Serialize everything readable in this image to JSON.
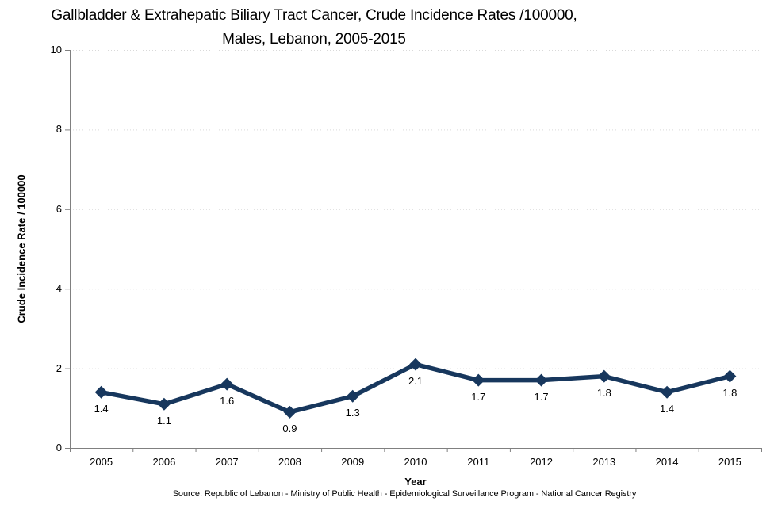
{
  "chart_data": {
    "type": "line",
    "title_lines": [
      "Gallbladder & Extrahepatic Biliary Tract Cancer, Crude Incidence Rates /100000,",
      "Males, Lebanon, 2005-2015"
    ],
    "categories": [
      "2005",
      "2006",
      "2007",
      "2008",
      "2009",
      "2010",
      "2011",
      "2012",
      "2013",
      "2014",
      "2015"
    ],
    "values": [
      1.4,
      1.1,
      1.6,
      0.9,
      1.3,
      2.1,
      1.7,
      1.7,
      1.8,
      1.4,
      1.8
    ],
    "data_labels": [
      "1.4",
      "1.1",
      "1.6",
      "0.9",
      "1.3",
      "2.1",
      "1.7",
      "1.7",
      "1.8",
      "1.4",
      "1.8"
    ],
    "xlabel": "Year",
    "ylabel": "Crude Incidence Rate / 100000",
    "ylim": [
      0,
      10
    ],
    "yticks": [
      0,
      2,
      4,
      6,
      8,
      10
    ],
    "grid": "horizontal-dotted",
    "legend": "none",
    "marker": "diamond",
    "series_color": "#17375D",
    "gridline_color": "#D9D9D9",
    "axis_color": "#808080",
    "text_color": "#000000",
    "source": "Source: Republic of Lebanon - Ministry of Public Health - Epidemiological Surveillance Program - National Cancer Registry"
  }
}
